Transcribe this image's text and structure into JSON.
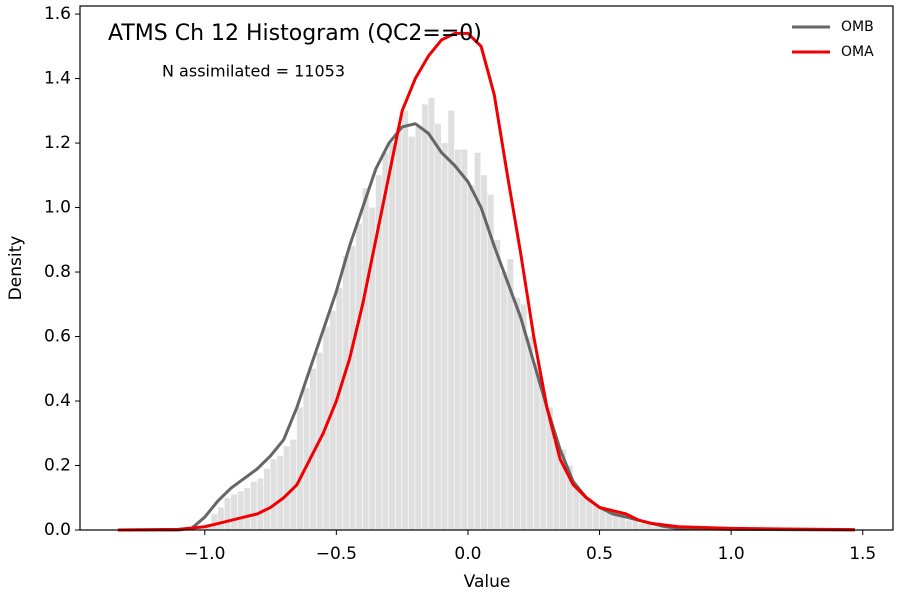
{
  "chart_data": {
    "type": "histogram",
    "title": "ATMS Ch 12 Histogram (QC2==0)",
    "annotation": "N assimilated = 11053",
    "x_label": "Value",
    "y_label": "Density",
    "color": "#dfdfdf",
    "bins": [
      -1.0,
      -0.975,
      -0.95,
      -0.925,
      -0.9,
      -0.875,
      -0.85,
      -0.825,
      -0.8,
      -0.775,
      -0.75,
      -0.725,
      -0.7,
      -0.675,
      -0.65,
      -0.625,
      -0.6,
      -0.575,
      -0.55,
      -0.525,
      -0.5,
      -0.475,
      -0.45,
      -0.425,
      -0.4,
      -0.375,
      -0.35,
      -0.325,
      -0.3,
      -0.275,
      -0.25,
      -0.225,
      -0.2,
      -0.175,
      -0.15,
      -0.125,
      -0.1,
      -0.075,
      -0.05,
      -0.025,
      0.0,
      0.025,
      0.05,
      0.075,
      0.1,
      0.125,
      0.15,
      0.175,
      0.2,
      0.225,
      0.25,
      0.275,
      0.3,
      0.325,
      0.35,
      0.375,
      0.4,
      0.425,
      0.45,
      0.475,
      0.5,
      0.525,
      0.55,
      0.575,
      0.6,
      0.625,
      0.65,
      0.675,
      0.7,
      0.725,
      0.75
    ],
    "values": [
      0.02,
      0.05,
      0.07,
      0.1,
      0.11,
      0.12,
      0.13,
      0.15,
      0.16,
      0.19,
      0.22,
      0.23,
      0.26,
      0.28,
      0.38,
      0.44,
      0.5,
      0.55,
      0.63,
      0.68,
      0.75,
      0.85,
      0.88,
      0.95,
      1.06,
      1.0,
      1.1,
      1.17,
      1.2,
      1.25,
      1.3,
      1.22,
      1.25,
      1.32,
      1.34,
      1.26,
      1.2,
      1.3,
      1.18,
      1.18,
      1.07,
      1.17,
      1.1,
      1.04,
      0.9,
      0.8,
      0.84,
      0.72,
      0.7,
      0.6,
      0.52,
      0.43,
      0.38,
      0.28,
      0.25,
      0.2,
      0.13,
      0.11,
      0.1,
      0.08,
      0.07,
      0.06,
      0.05,
      0.04,
      0.03,
      0.03,
      0.02,
      0.02,
      0.01,
      0.01
    ],
    "series": [
      {
        "name": "OMB",
        "color": "#666666",
        "x": [
          -1.33,
          -1.1,
          -1.05,
          -1.0,
          -0.95,
          -0.9,
          -0.85,
          -0.8,
          -0.75,
          -0.7,
          -0.65,
          -0.6,
          -0.55,
          -0.5,
          -0.45,
          -0.4,
          -0.35,
          -0.3,
          -0.25,
          -0.2,
          -0.15,
          -0.1,
          -0.05,
          0.0,
          0.05,
          0.1,
          0.15,
          0.2,
          0.25,
          0.3,
          0.35,
          0.4,
          0.45,
          0.5,
          0.55,
          0.6,
          0.65,
          0.7,
          0.75,
          0.8,
          1.0,
          1.2,
          1.47
        ],
        "values": [
          0,
          0,
          0.005,
          0.04,
          0.09,
          0.13,
          0.16,
          0.19,
          0.23,
          0.28,
          0.38,
          0.5,
          0.62,
          0.74,
          0.88,
          1.0,
          1.12,
          1.2,
          1.25,
          1.26,
          1.23,
          1.17,
          1.13,
          1.08,
          1.0,
          0.88,
          0.77,
          0.66,
          0.52,
          0.38,
          0.25,
          0.15,
          0.1,
          0.07,
          0.05,
          0.04,
          0.03,
          0.02,
          0.01,
          0.005,
          0.002,
          0.001,
          0
        ]
      },
      {
        "name": "OMA",
        "color": "#f00000",
        "x": [
          -1.33,
          -1.1,
          -1.0,
          -0.95,
          -0.9,
          -0.85,
          -0.8,
          -0.75,
          -0.7,
          -0.65,
          -0.6,
          -0.55,
          -0.5,
          -0.45,
          -0.4,
          -0.35,
          -0.3,
          -0.25,
          -0.2,
          -0.15,
          -0.1,
          -0.05,
          0.0,
          0.05,
          0.1,
          0.15,
          0.2,
          0.25,
          0.3,
          0.35,
          0.4,
          0.45,
          0.5,
          0.55,
          0.6,
          0.65,
          0.7,
          0.75,
          0.8,
          1.0,
          1.2,
          1.47
        ],
        "values": [
          0,
          0.002,
          0.01,
          0.02,
          0.03,
          0.04,
          0.05,
          0.07,
          0.1,
          0.14,
          0.22,
          0.3,
          0.4,
          0.53,
          0.7,
          0.9,
          1.1,
          1.3,
          1.4,
          1.47,
          1.52,
          1.54,
          1.54,
          1.5,
          1.35,
          1.1,
          0.86,
          0.6,
          0.38,
          0.22,
          0.14,
          0.1,
          0.07,
          0.06,
          0.05,
          0.03,
          0.02,
          0.015,
          0.01,
          0.005,
          0.003,
          0.001
        ]
      }
    ],
    "xlim": [
      -1.474,
      1.615
    ],
    "ylim": [
      0,
      1.625
    ],
    "xticks": [
      {
        "value": -1.0,
        "label": "−1.0"
      },
      {
        "value": -0.5,
        "label": "−0.5"
      },
      {
        "value": 0.0,
        "label": "0.0"
      },
      0.5,
      {
        "value": 1.0,
        "label": "1.0"
      },
      1.5
    ],
    "yticks": [
      {
        "value": 0.0,
        "label": "0.0"
      },
      0.2,
      0.4,
      0.6,
      0.8,
      {
        "value": 1.0,
        "label": "1.0"
      },
      1.2,
      1.4,
      1.6
    ],
    "legend": "upper right"
  }
}
